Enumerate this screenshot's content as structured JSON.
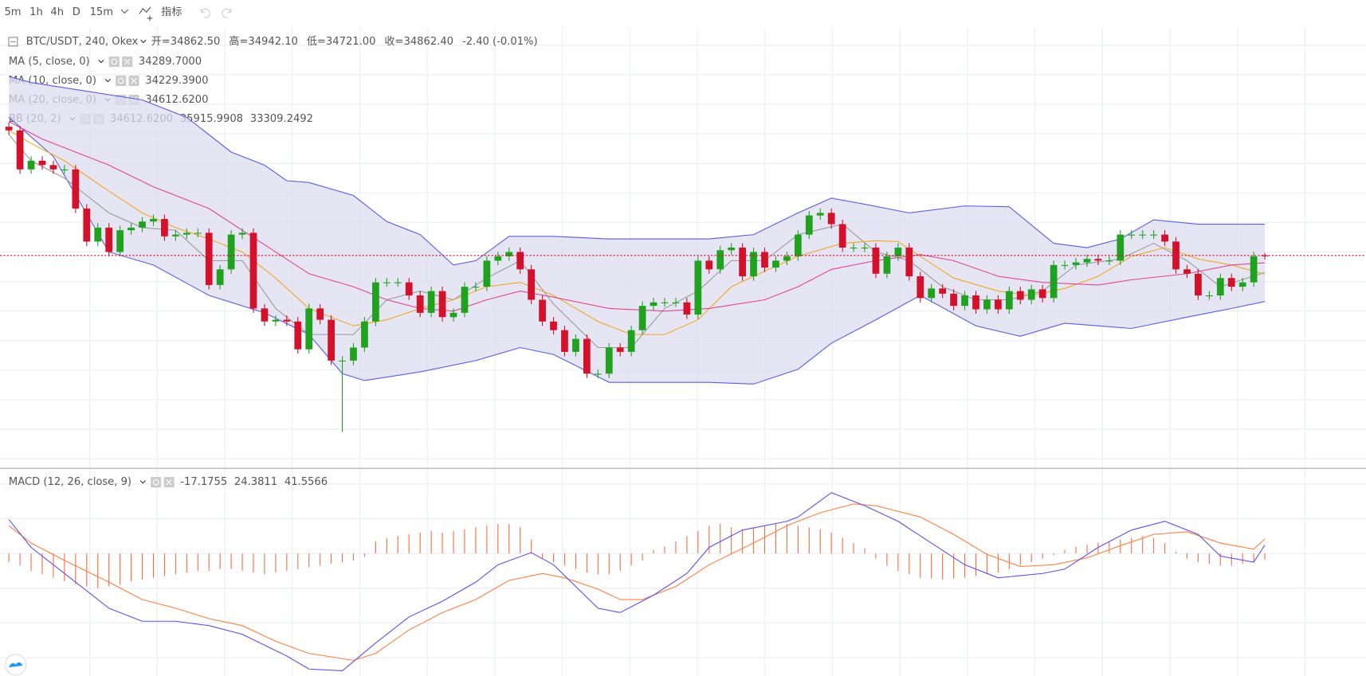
{
  "toolbar": {
    "intervals": [
      "5m",
      "1h",
      "4h",
      "D",
      "15m"
    ],
    "active": "4h",
    "indicators": "指标"
  },
  "chart_data": [
    {
      "type": "candlestick",
      "symbol": "BTC/USDT, 240, Okex",
      "ohlc_labels": [
        {
          "label": "开=",
          "value": "34862.50"
        },
        {
          "label": "高=",
          "value": "34942.10"
        },
        {
          "label": "低=",
          "value": "34721.00"
        },
        {
          "label": "收=",
          "value": "34862.40"
        }
      ],
      "change": "-2.40 (-0.01%)",
      "xlim": [
        -0.8,
        122.1
      ],
      "ylim": [
        27712,
        42537
      ],
      "grid": true,
      "up_color": "#1fa31f",
      "down_color": "#d5102a",
      "open": [
        39200,
        39080,
        37762,
        38055,
        37908,
        37762,
        37762,
        36443,
        35330,
        35799,
        34978,
        35711,
        35799,
        36004,
        36091,
        35505,
        35564,
        35623,
        35623,
        33865,
        34392,
        35564,
        35623,
        33074,
        32634,
        32693,
        32634,
        31696,
        33074,
        32693,
        31316,
        31316,
        31755,
        32634,
        33953,
        33953,
        33953,
        33513,
        32927,
        33659,
        32781,
        32927,
        33806,
        33806,
        34685,
        34832,
        34978,
        34392,
        33367,
        32634,
        32341,
        31609,
        32048,
        30876,
        30876,
        31755,
        31609,
        32341,
        33161,
        33279,
        33279,
        33279,
        32869,
        34685,
        34392,
        35037,
        35125,
        34158,
        34978,
        34451,
        34685,
        34832,
        35564,
        36209,
        36297,
        35916,
        35125,
        35125,
        35125,
        34246,
        34832,
        35125,
        34158,
        33425,
        33748,
        33572,
        33161,
        33513,
        33044,
        33367,
        33044,
        33659,
        33367,
        33718,
        33425,
        34539,
        34539,
        34627,
        34744,
        34685,
        34685,
        35564,
        35564,
        35564,
        35564,
        35330,
        34392,
        34246,
        33513,
        33513,
        34099,
        33806,
        33953,
        34862.5
      ],
      "high": [
        39350,
        39230,
        38205,
        38205,
        38058,
        37912,
        37912,
        36593,
        35949,
        35949,
        35861,
        35949,
        36154,
        36241,
        36241,
        35714,
        35773,
        35773,
        35773,
        34542,
        35714,
        35773,
        35773,
        33224,
        32843,
        32843,
        32784,
        33224,
        33224,
        32843,
        31466,
        31905,
        32784,
        34103,
        34103,
        34103,
        34103,
        33663,
        33809,
        33809,
        33077,
        33956,
        33956,
        34835,
        34982,
        35128,
        35128,
        34542,
        33517,
        32784,
        32491,
        32198,
        32198,
        31026,
        31905,
        31905,
        32491,
        33311,
        33429,
        33429,
        33429,
        33429,
        34835,
        34835,
        35187,
        35275,
        35275,
        35128,
        35128,
        34835,
        34982,
        35714,
        36359,
        36447,
        36447,
        36066,
        35275,
        35275,
        35275,
        34982,
        35275,
        35275,
        34308,
        33898,
        33898,
        33722,
        33663,
        33663,
        33517,
        33517,
        33809,
        33809,
        33868,
        33868,
        34689,
        34689,
        34777,
        34894,
        34894,
        34835,
        35714,
        35714,
        35714,
        35714,
        35714,
        35480,
        34542,
        34396,
        33663,
        34249,
        34249,
        34103,
        34982,
        34942.1
      ],
      "low": [
        38930,
        37612,
        37612,
        37758,
        37612,
        37612,
        36293,
        35180,
        35180,
        34828,
        34828,
        35561,
        35649,
        35854,
        35355,
        35355,
        35414,
        35473,
        33715,
        33715,
        34242,
        35414,
        32924,
        32484,
        32484,
        32484,
        31546,
        31546,
        32543,
        31166,
        28913,
        31166,
        31605,
        32484,
        33803,
        33803,
        33363,
        32777,
        32777,
        32631,
        32631,
        32777,
        33656,
        33656,
        34535,
        34682,
        34242,
        33217,
        32484,
        32191,
        31459,
        31459,
        30726,
        30726,
        30726,
        31459,
        31459,
        32191,
        33011,
        33129,
        33129,
        32719,
        32719,
        34242,
        34242,
        34887,
        34008,
        34008,
        34301,
        34301,
        34535,
        34682,
        35414,
        36059,
        35766,
        34975,
        34975,
        34975,
        34096,
        34096,
        34682,
        34008,
        33275,
        33275,
        33422,
        33011,
        33011,
        32894,
        32894,
        32894,
        32894,
        33217,
        33217,
        33275,
        33275,
        34389,
        34389,
        34477,
        34535,
        34535,
        34535,
        35414,
        35414,
        35414,
        35180,
        34242,
        34096,
        33363,
        33363,
        33363,
        33656,
        33656,
        33803,
        34721
      ],
      "close": [
        39080,
        37762,
        38055,
        37908,
        37762,
        37762,
        36443,
        35330,
        35799,
        34978,
        35711,
        35799,
        36004,
        36091,
        35505,
        35564,
        35623,
        35623,
        33865,
        34392,
        35564,
        35623,
        33074,
        32634,
        32693,
        32634,
        31696,
        33074,
        32693,
        31316,
        31316,
        31755,
        32634,
        33953,
        33953,
        33953,
        33513,
        32927,
        33659,
        32781,
        32927,
        33806,
        33806,
        34685,
        34832,
        34978,
        34392,
        33367,
        32634,
        32341,
        31609,
        32048,
        30876,
        30876,
        31755,
        31609,
        32341,
        33161,
        33279,
        33279,
        33279,
        32869,
        34685,
        34392,
        35037,
        35125,
        34158,
        34978,
        34451,
        34685,
        34832,
        35564,
        36209,
        36297,
        35916,
        35125,
        35125,
        35125,
        34246,
        34832,
        35125,
        34158,
        33425,
        33748,
        33572,
        33161,
        33513,
        33044,
        33367,
        33044,
        33659,
        33367,
        33718,
        33425,
        34539,
        34539,
        34627,
        34744,
        34685,
        34685,
        35564,
        35564,
        35564,
        35564,
        35330,
        34392,
        34246,
        33513,
        33513,
        34099,
        33806,
        33953,
        34832,
        34862.4
      ],
      "overlays": [
        {
          "name": "MA (5, close, 0)",
          "color": "#9a9a9a",
          "value_label": "34289.7000",
          "x": [
            0,
            2,
            5,
            9,
            12,
            15,
            18,
            21,
            24,
            27,
            31,
            34,
            37,
            40,
            43,
            46,
            49,
            53,
            56,
            59,
            62,
            65,
            68,
            71,
            75,
            78,
            81,
            84,
            87,
            90,
            93,
            96,
            100,
            103,
            106,
            109,
            113
          ],
          "values": [
            38934,
            38055,
            37469,
            36297,
            35799,
            35711,
            34685,
            34685,
            33074,
            32195,
            32195,
            33367,
            33660,
            33367,
            34099,
            34685,
            33220,
            31755,
            31755,
            33074,
            33660,
            34685,
            34685,
            35564,
            35916,
            34978,
            34685,
            33806,
            33367,
            33367,
            33660,
            34539,
            34744,
            35271,
            34685,
            33806,
            34289.7
          ]
        },
        {
          "name": "MA (10, close, 0)",
          "color": "#f5a623",
          "value_label": "34229.3900",
          "x": [
            0,
            2,
            5,
            9,
            12,
            15,
            18,
            21,
            24,
            27,
            31,
            34,
            37,
            40,
            43,
            46,
            49,
            53,
            56,
            59,
            62,
            65,
            68,
            71,
            75,
            78,
            80,
            82,
            85,
            89,
            92,
            95,
            98,
            101,
            104,
            107,
            110,
            113
          ],
          "values": [
            39080,
            38641,
            38055,
            37029,
            36297,
            35799,
            35418,
            34978,
            34099,
            33074,
            32488,
            32693,
            33074,
            33367,
            33806,
            33953,
            33513,
            32634,
            32195,
            32195,
            32693,
            33806,
            34334,
            34832,
            35271,
            35359,
            35330,
            34832,
            34099,
            33660,
            33513,
            33748,
            34158,
            34832,
            35125,
            34744,
            34539,
            34229.39
          ]
        },
        {
          "name": "MA (20, close, 0)",
          "color": "#e24590",
          "value_label": "34612.6200",
          "x": [
            0,
            3,
            9,
            13,
            18,
            21,
            24,
            27,
            31,
            34,
            37,
            40,
            43,
            46,
            49,
            54,
            59,
            63,
            68,
            71,
            74,
            78,
            82,
            85,
            89,
            93,
            98,
            101,
            106,
            110,
            113
          ],
          "values": [
            39373,
            38787,
            37908,
            37176,
            36443,
            35711,
            34978,
            34246,
            33806,
            33367,
            33074,
            32986,
            33367,
            33660,
            33454,
            33074,
            32986,
            33074,
            33367,
            33806,
            34392,
            34685,
            34890,
            34685,
            34158,
            33953,
            33865,
            34040,
            34246,
            34539,
            34612.62
          ]
        }
      ],
      "bands": {
        "name": "BB (20, 2)",
        "color": "#5b5bea",
        "fill": "#dcdcef",
        "basis_label": "34612.6200",
        "basis_color": "#e31a1c",
        "label_color": "#2a2ae0",
        "upper": {
          "value_label": "35915.9908",
          "x": [
            0,
            2,
            7,
            12,
            16,
            20,
            23,
            25,
            27,
            31,
            34,
            37,
            40,
            42,
            45,
            49,
            54,
            59,
            63,
            67,
            71,
            74,
            77,
            81,
            86,
            90,
            94,
            97,
            100,
            103,
            107,
            113
          ],
          "values": [
            40897,
            40692,
            40399,
            40106,
            39520,
            38348,
            37908,
            37381,
            37322,
            36883,
            36004,
            35564,
            34539,
            34685,
            35505,
            35505,
            35418,
            35418,
            35418,
            35564,
            36297,
            36795,
            36590,
            36297,
            36531,
            36502,
            35271,
            35125,
            35418,
            36062,
            35916,
            35915.9908
          ]
        },
        "lower": {
          "value_label": "33309.2492",
          "x": [
            0,
            4,
            9,
            13,
            18,
            23,
            27,
            30,
            32,
            37,
            42,
            46,
            49,
            54,
            59,
            63,
            67,
            71,
            74,
            78,
            82,
            87,
            91,
            95,
            101,
            106,
            110,
            113
          ],
          "values": [
            39520,
            38201,
            34978,
            34539,
            33513,
            32927,
            32195,
            30876,
            30642,
            30935,
            31316,
            31755,
            31521,
            30583,
            30583,
            30583,
            30524,
            31023,
            31902,
            32692,
            33513,
            32488,
            32136,
            32576,
            32400,
            32781,
            33074,
            33309.2492
          ]
        }
      }
    },
    {
      "type": "macd",
      "name": "MACD (12, 26, close, 9)",
      "xlim": [
        -0.8,
        122.1
      ],
      "ylim": [
        -352.5,
        242.5
      ],
      "histogram": {
        "color": "#ff6a3d",
        "value_label": "-17.1755",
        "values": [
          -25,
          -35,
          -50,
          -60,
          -70,
          -80,
          -90,
          -95,
          -100,
          -95,
          -90,
          -80,
          -75,
          -70,
          -65,
          -60,
          -55,
          -50,
          -50,
          -45,
          -45,
          -50,
          -55,
          -60,
          -55,
          -50,
          -45,
          -40,
          -35,
          -30,
          -25,
          -20,
          -10,
          35,
          45,
          50,
          55,
          60,
          65,
          60,
          65,
          70,
          75,
          80,
          85,
          85,
          75,
          40,
          -15,
          -25,
          -35,
          -45,
          -55,
          -60,
          -60,
          -50,
          -35,
          -20,
          10,
          20,
          35,
          50,
          65,
          80,
          85,
          75,
          70,
          75,
          80,
          85,
          85,
          80,
          75,
          70,
          60,
          45,
          30,
          15,
          -15,
          -35,
          -50,
          -60,
          -70,
          -72,
          -75,
          -72,
          -70,
          -65,
          -60,
          -55,
          -45,
          -35,
          -25,
          -15,
          -5,
          10,
          20,
          25,
          30,
          35,
          40,
          45,
          50,
          45,
          30,
          5,
          -15,
          -25,
          -30,
          -35,
          -35,
          -30,
          -25,
          -17.1755
        ]
      },
      "macd": {
        "color": "#5b4ff0",
        "value_label": "24.3811",
        "x": [
          0,
          2,
          5,
          9,
          12,
          15,
          18,
          21,
          25,
          27,
          30,
          33,
          36,
          39,
          42,
          44,
          47,
          49,
          51,
          53,
          55,
          58,
          61,
          63,
          66,
          70,
          71,
          74,
          77,
          80,
          83,
          86,
          89,
          93,
          95,
          98,
          101,
          104,
          107,
          109,
          112,
          113
        ],
        "values": [
          97.5,
          17.5,
          -57.5,
          -157.5,
          -195,
          -195,
          -207.5,
          -232.5,
          -295,
          -332.5,
          -337.5,
          -257.5,
          -182.5,
          -137.5,
          -82.5,
          -32.5,
          2.5,
          -32.5,
          -95,
          -157.5,
          -170,
          -120,
          -57.5,
          17.5,
          67.5,
          92.5,
          105,
          175,
          137.5,
          92.5,
          30,
          -32.5,
          -70,
          -57.5,
          -45,
          17.5,
          67.5,
          92.5,
          55,
          -7.5,
          -25,
          24.3811
        ]
      },
      "signal": {
        "color": "#ff7f3f",
        "value_label": "41.5566",
        "x": [
          0,
          2,
          5,
          9,
          12,
          15,
          18,
          21,
          24,
          27,
          31,
          33,
          36,
          39,
          42,
          45,
          48,
          50,
          53,
          55,
          57,
          60,
          63,
          67,
          70,
          73,
          76,
          78,
          82,
          85,
          88,
          91,
          94,
          97,
          100,
          103,
          106,
          109,
          112,
          113
        ],
        "values": [
          80,
          30,
          -20,
          -82.5,
          -132.5,
          -157.5,
          -187.5,
          -207.5,
          -252.5,
          -287.5,
          -307.5,
          -287.5,
          -220,
          -170,
          -132.5,
          -77.5,
          -57.5,
          -70,
          -102.5,
          -132.5,
          -132.5,
          -95,
          -32.5,
          30,
          80,
          117.5,
          142.5,
          137.5,
          105,
          55,
          -2.5,
          -37.5,
          -32.5,
          -12.5,
          22.5,
          55,
          62.5,
          30,
          12.5,
          41.5566
        ]
      }
    }
  ]
}
